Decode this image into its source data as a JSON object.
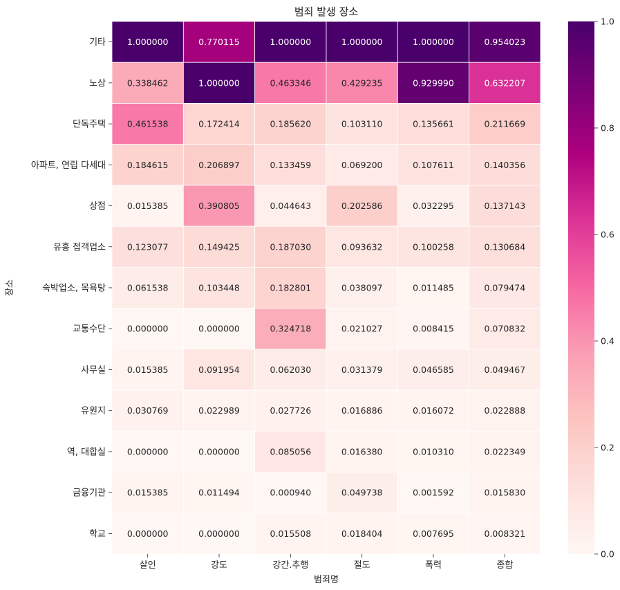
{
  "chart_data": {
    "type": "heatmap",
    "title": "범죄 발생 장소",
    "xlabel": "범죄명",
    "ylabel": "장소",
    "x": [
      "살인",
      "강도",
      "강간.추행",
      "절도",
      "폭력",
      "종합"
    ],
    "y": [
      "기타",
      "노상",
      "단독주택",
      "아파트, 연립 다세대",
      "상점",
      "유흥 접객업소",
      "숙박업소, 목욕탕",
      "교통수단",
      "사무실",
      "유원지",
      "역, 대합실",
      "금융기관",
      "학교"
    ],
    "values": [
      [
        1.0,
        0.770115,
        1.0,
        1.0,
        1.0,
        0.954023
      ],
      [
        0.338462,
        1.0,
        0.463346,
        0.429235,
        0.92999,
        0.632207
      ],
      [
        0.461538,
        0.172414,
        0.18562,
        0.10311,
        0.135661,
        0.211669
      ],
      [
        0.184615,
        0.206897,
        0.133459,
        0.0692,
        0.107611,
        0.140356
      ],
      [
        0.015385,
        0.390805,
        0.044643,
        0.202586,
        0.032295,
        0.137143
      ],
      [
        0.123077,
        0.149425,
        0.18703,
        0.093632,
        0.100258,
        0.130684
      ],
      [
        0.061538,
        0.103448,
        0.182801,
        0.038097,
        0.011485,
        0.079474
      ],
      [
        0.0,
        0.0,
        0.324718,
        0.021027,
        0.008415,
        0.070832
      ],
      [
        0.015385,
        0.091954,
        0.06203,
        0.031379,
        0.046585,
        0.049467
      ],
      [
        0.030769,
        0.022989,
        0.027726,
        0.016886,
        0.016072,
        0.022888
      ],
      [
        0.0,
        0.0,
        0.085056,
        0.01638,
        0.01031,
        0.022349
      ],
      [
        0.015385,
        0.011494,
        0.00094,
        0.049738,
        0.001592,
        0.01583
      ],
      [
        0.0,
        0.0,
        0.015508,
        0.018404,
        0.007695,
        0.008321
      ]
    ],
    "value_format": "6 decimals",
    "colormap": "RdPu",
    "colorbar": {
      "min": 0.0,
      "max": 1.0,
      "ticks": [
        "0.0",
        "0.2",
        "0.4",
        "0.6",
        "0.8",
        "1.0"
      ]
    },
    "colors": {
      "stops": [
        "#fff7f3",
        "#fde0dd",
        "#fcc5c0",
        "#fa9fb5",
        "#f768a1",
        "#dd3497",
        "#ae017e",
        "#7a0177",
        "#49006a"
      ],
      "cell_border": "#ffffff",
      "text_dark": "#262626",
      "text_light": "#ffffff"
    }
  }
}
